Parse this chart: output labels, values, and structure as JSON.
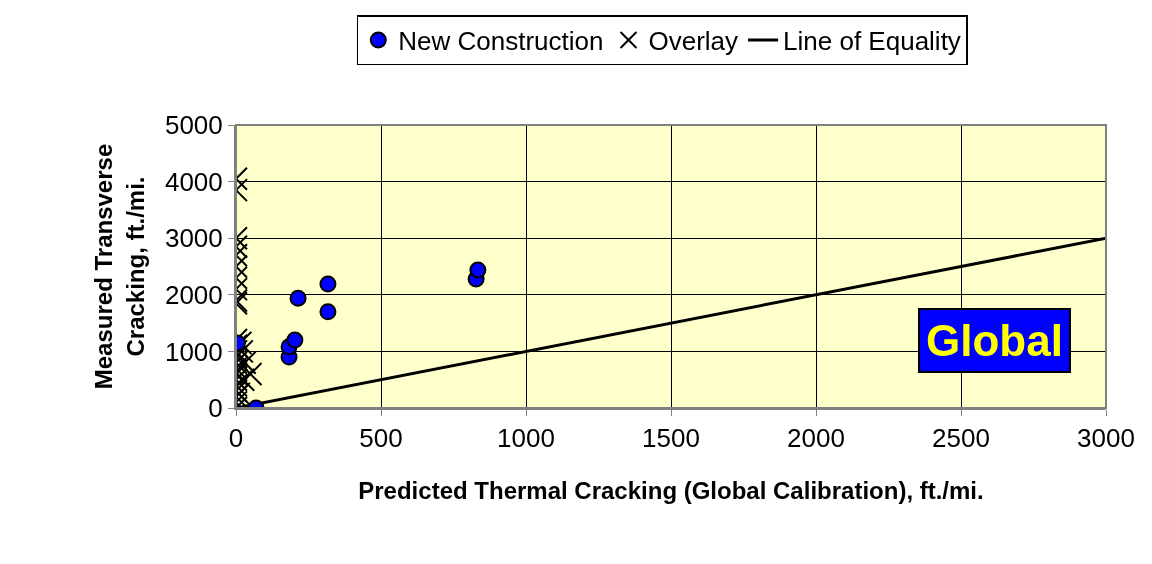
{
  "chart_data": {
    "type": "scatter",
    "xlabel": "Predicted Thermal Cracking (Global Calibration), ft./mi.",
    "ylabel": "Measured Transverse Cracking, ft./mi.",
    "xlim": [
      0,
      3000
    ],
    "xticks": [
      0,
      500,
      1000,
      1500,
      2000,
      2500,
      3000
    ],
    "ylim": [
      0,
      5000
    ],
    "yticks": [
      0,
      1000,
      2000,
      3000,
      4000,
      5000
    ],
    "grid": true,
    "legend": "top",
    "annotations": [
      "Global"
    ],
    "series": [
      {
        "name": "New Construction",
        "marker": "circle",
        "color": "#0000ff",
        "x": [
          69,
          183,
          183,
          203,
          214,
          317,
          317,
          828,
          834,
          5
        ],
        "values": [
          0,
          900,
          1080,
          1200,
          1940,
          2190,
          1700,
          2280,
          2440,
          1150
        ]
      },
      {
        "name": "Overlay",
        "marker": "cross",
        "color": "#000000",
        "x": [
          0,
          0,
          0,
          0,
          0,
          0,
          0,
          0,
          0,
          0,
          0,
          0,
          0,
          0,
          0,
          0,
          0,
          0,
          0,
          0,
          0,
          0,
          0,
          20,
          30,
          25,
          50,
          15,
          10
        ],
        "values": [
          4050,
          3850,
          3000,
          2850,
          2700,
          2500,
          2300,
          2100,
          1900,
          1850,
          1200,
          1100,
          1000,
          900,
          800,
          700,
          600,
          500,
          400,
          300,
          200,
          100,
          0,
          1000,
          800,
          500,
          600,
          1150,
          250
        ]
      },
      {
        "name": "Line of Equality",
        "type": "line",
        "color": "#000000",
        "x": [
          0,
          3000
        ],
        "values": [
          0,
          3000
        ]
      }
    ]
  }
}
